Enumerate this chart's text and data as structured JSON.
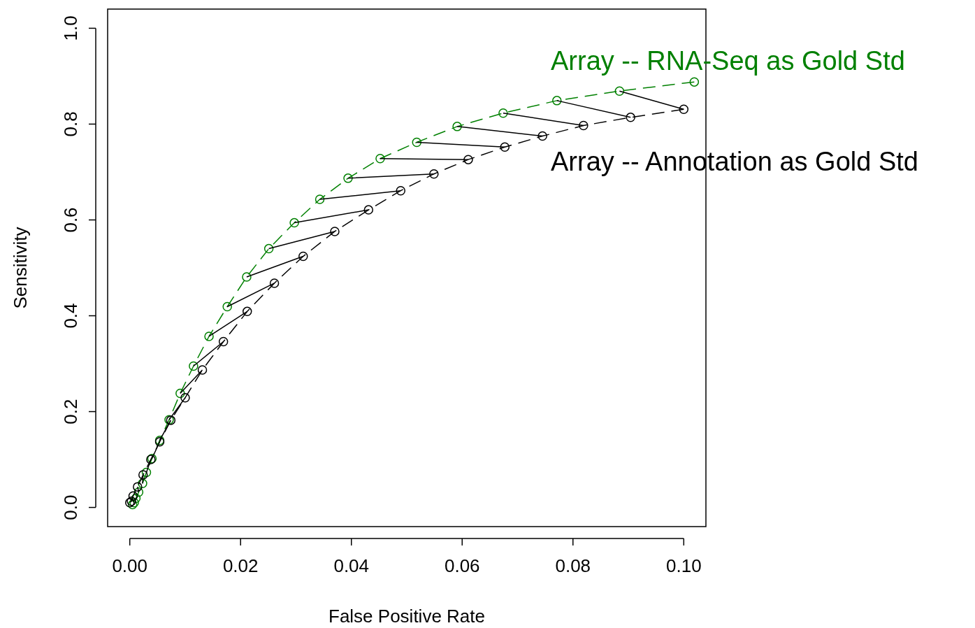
{
  "chart_data": {
    "type": "line",
    "xlabel": "False Positive Rate",
    "ylabel": "Sensitivity",
    "xlim": [
      -0.004,
      0.104
    ],
    "ylim": [
      -0.04,
      1.04
    ],
    "xticks": [
      {
        "value": 0,
        "label": "0.00"
      },
      {
        "value": 0.02,
        "label": "0.02"
      },
      {
        "value": 0.04,
        "label": "0.04"
      },
      {
        "value": 0.06,
        "label": "0.06"
      },
      {
        "value": 0.08,
        "label": "0.08"
      },
      {
        "value": 0.1,
        "label": "0.10"
      }
    ],
    "yticks": [
      {
        "value": 0,
        "label": "0.0"
      },
      {
        "value": 0.2,
        "label": "0.2"
      },
      {
        "value": 0.4,
        "label": "0.4"
      },
      {
        "value": 0.6,
        "label": "0.6"
      },
      {
        "value": 0.8,
        "label": "0.8"
      },
      {
        "value": 1,
        "label": "1.0"
      }
    ],
    "grid": false,
    "series": [
      {
        "name": "Array -- RNA-Seq as Gold Std",
        "color": "#008000",
        "marker": "circle",
        "line_style": "dashed",
        "x": [
          0.1019,
          0.0884,
          0.0771,
          0.0674,
          0.0591,
          0.0518,
          0.0452,
          0.0394,
          0.0343,
          0.0297,
          0.0251,
          0.0211,
          0.0176,
          0.0143,
          0.0115,
          0.0091,
          0.0071,
          0.0054,
          0.004,
          0.003,
          0.0023,
          0.0016,
          0.0011,
          0.0008,
          0.0005
        ],
        "values": [
          0.888,
          0.869,
          0.849,
          0.823,
          0.795,
          0.762,
          0.728,
          0.687,
          0.643,
          0.594,
          0.54,
          0.481,
          0.419,
          0.357,
          0.295,
          0.238,
          0.183,
          0.14,
          0.102,
          0.073,
          0.05,
          0.032,
          0.019,
          0.01,
          0.006
        ]
      },
      {
        "name": "Array -- Annotation as Gold Std",
        "color": "#000000",
        "marker": "circle",
        "line_style": "dashed",
        "x": [
          0.1,
          0.0904,
          0.0819,
          0.0745,
          0.0677,
          0.0611,
          0.0549,
          0.0489,
          0.0431,
          0.037,
          0.0313,
          0.0261,
          0.0212,
          0.0169,
          0.0131,
          0.01,
          0.0074,
          0.0054,
          0.0038,
          0.0024,
          0.0014,
          0.0006,
          0.0003,
          0.0
        ],
        "values": [
          0.831,
          0.814,
          0.797,
          0.775,
          0.752,
          0.726,
          0.696,
          0.661,
          0.621,
          0.576,
          0.524,
          0.468,
          0.409,
          0.346,
          0.287,
          0.229,
          0.182,
          0.137,
          0.1,
          0.068,
          0.043,
          0.024,
          0.013,
          0.01
        ]
      },
      {
        "color": "#000000",
        "marker": "none",
        "line_style": "solid",
        "x": [
          0.0884,
          0.1,
          null,
          0.0771,
          0.0904,
          null,
          0.0674,
          0.0819,
          null,
          0.0591,
          0.0745,
          null,
          0.0518,
          0.0677,
          null,
          0.0452,
          0.0611,
          null,
          0.0394,
          0.0549,
          null,
          0.0343,
          0.0489,
          null,
          0.0297,
          0.0431,
          null,
          0.0251,
          0.037,
          null,
          0.0211,
          0.0313,
          null,
          0.0176,
          0.0261,
          null,
          0.0143,
          0.0212,
          null,
          0.0115,
          0.0169,
          null,
          0.0091,
          0.0131,
          null,
          0.0071,
          0.01,
          null,
          0.0054,
          0.0074,
          null,
          0.004,
          0.0054,
          null,
          0.003,
          0.0038,
          null,
          0.0023,
          0.0024,
          null,
          0.0016,
          0.0014
        ],
        "values": [
          0.869,
          0.831,
          null,
          0.849,
          0.814,
          null,
          0.823,
          0.797,
          null,
          0.795,
          0.775,
          null,
          0.762,
          0.752,
          null,
          0.728,
          0.726,
          null,
          0.687,
          0.696,
          null,
          0.643,
          0.661,
          null,
          0.594,
          0.621,
          null,
          0.54,
          0.576,
          null,
          0.481,
          0.524,
          null,
          0.419,
          0.468,
          null,
          0.357,
          0.409,
          null,
          0.295,
          0.346,
          null,
          0.238,
          0.287,
          null,
          0.183,
          0.229,
          null,
          0.14,
          0.182,
          null,
          0.102,
          0.137,
          null,
          0.073,
          0.1,
          null,
          0.05,
          0.068,
          null,
          0.032,
          0.043
        ]
      }
    ]
  }
}
